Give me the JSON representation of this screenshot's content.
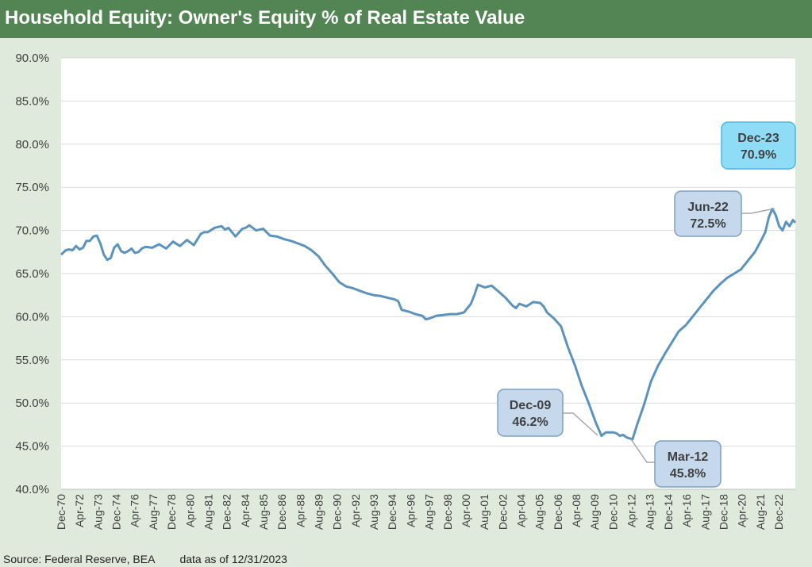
{
  "header": {
    "title": "Household Equity: Owner's Equity % of Real Estate Value"
  },
  "footer": {
    "source": "Source: Federal Reserve, BEA",
    "as_of": "data as of 12/31/2023"
  },
  "colors": {
    "title_bar": "#538453",
    "background": "#dfe9dc",
    "line": "#5b93bf",
    "callout_fill": "#c6d8ec",
    "callout_border": "#7b9fbf",
    "highlight_fill": "#8fdcf7",
    "highlight_border": "#4fb6e0"
  },
  "chart_data": {
    "type": "line",
    "title": "Household Equity: Owner's Equity % of Real Estate Value",
    "xlabel": "",
    "ylabel": "",
    "ylim": [
      40,
      90
    ],
    "yticks": [
      "90.0%",
      "85.0%",
      "80.0%",
      "75.0%",
      "70.0%",
      "65.0%",
      "60.0%",
      "55.0%",
      "50.0%",
      "45.0%",
      "40.0%"
    ],
    "xticks": [
      "Dec-70",
      "Apr-72",
      "Aug-73",
      "Dec-74",
      "Apr-76",
      "Aug-77",
      "Dec-78",
      "Apr-80",
      "Aug-81",
      "Dec-82",
      "Apr-84",
      "Aug-85",
      "Dec-86",
      "Apr-88",
      "Aug-89",
      "Dec-90",
      "Apr-92",
      "Aug-93",
      "Dec-94",
      "Apr-96",
      "Aug-97",
      "Dec-98",
      "Apr-00",
      "Aug-01",
      "Dec-02",
      "Apr-04",
      "Aug-05",
      "Dec-06",
      "Apr-08",
      "Aug-09",
      "Dec-10",
      "Apr-12",
      "Aug-13",
      "Dec-14",
      "Apr-16",
      "Aug-17",
      "Dec-18",
      "Apr-20",
      "Aug-21",
      "Dec-22"
    ],
    "grid": true,
    "series": [
      {
        "x": [
          1970.92,
          1971.25,
          1971.5,
          1971.75,
          1972.0,
          1972.25,
          1972.5,
          1972.75,
          1973.0,
          1973.25,
          1973.5,
          1973.75,
          1974.0,
          1974.25,
          1974.5,
          1974.75,
          1975.0,
          1975.25,
          1975.5,
          1975.75,
          1976.0,
          1976.25,
          1976.5,
          1976.75,
          1977.0,
          1977.5,
          1978.0,
          1978.5,
          1979.0,
          1979.5,
          1980.0,
          1980.5,
          1981.0,
          1981.25,
          1981.5,
          1982.0,
          1982.5,
          1982.75,
          1983.0,
          1983.5,
          1984.0,
          1984.25,
          1984.5,
          1985.0,
          1985.5,
          1985.75,
          1986.0,
          1986.5,
          1987.0,
          1987.5,
          1988.0,
          1988.5,
          1989.0,
          1989.5,
          1990.0,
          1990.5,
          1991.0,
          1991.5,
          1992.0,
          1992.5,
          1993.0,
          1993.5,
          1994.0,
          1994.5,
          1995.0,
          1995.25,
          1995.5,
          1996.0,
          1996.5,
          1997.0,
          1997.25,
          1997.5,
          1998.0,
          1998.5,
          1999.0,
          1999.5,
          2000.0,
          2000.5,
          2000.75,
          2001.0,
          2001.5,
          2002.0,
          2002.5,
          2003.0,
          2003.5,
          2003.75,
          2004.0,
          2004.5,
          2005.0,
          2005.5,
          2005.75,
          2006.0,
          2006.5,
          2007.0,
          2007.5,
          2008.0,
          2008.5,
          2009.0,
          2009.5,
          2009.92,
          2010.25,
          2010.75,
          2011.0,
          2011.25,
          2011.5,
          2011.75,
          2012.17,
          2012.5,
          2013.0,
          2013.5,
          2014.0,
          2014.5,
          2015.0,
          2015.5,
          2016.0,
          2016.5,
          2017.0,
          2017.5,
          2018.0,
          2018.5,
          2019.0,
          2019.5,
          2020.0,
          2020.5,
          2021.0,
          2021.5,
          2021.75,
          2022.0,
          2022.25,
          2022.5,
          2022.75,
          2023.0,
          2023.25,
          2023.5,
          2023.75,
          2023.92
        ],
        "values": [
          67.2,
          67.7,
          67.8,
          67.7,
          68.2,
          67.8,
          68.0,
          68.8,
          68.8,
          69.3,
          69.4,
          68.5,
          67.2,
          66.6,
          66.8,
          68.0,
          68.4,
          67.6,
          67.4,
          67.6,
          67.9,
          67.4,
          67.5,
          67.9,
          68.1,
          68.0,
          68.4,
          67.9,
          68.7,
          68.2,
          68.9,
          68.3,
          69.6,
          69.8,
          69.8,
          70.3,
          70.5,
          70.1,
          70.3,
          69.3,
          70.2,
          70.3,
          70.6,
          70.0,
          70.2,
          69.8,
          69.4,
          69.3,
          69.0,
          68.8,
          68.5,
          68.2,
          67.7,
          67.0,
          65.9,
          65.0,
          64.0,
          63.5,
          63.3,
          63.0,
          62.7,
          62.5,
          62.4,
          62.2,
          62.0,
          61.8,
          60.8,
          60.6,
          60.3,
          60.1,
          59.7,
          59.8,
          60.1,
          60.2,
          60.3,
          60.3,
          60.5,
          61.5,
          62.5,
          63.7,
          63.4,
          63.6,
          62.9,
          62.2,
          61.3,
          61.0,
          61.5,
          61.2,
          61.7,
          61.6,
          61.2,
          60.5,
          59.8,
          58.9,
          56.5,
          54.4,
          52.0,
          50.0,
          47.8,
          46.2,
          46.6,
          46.6,
          46.5,
          46.2,
          46.3,
          46.0,
          45.8,
          47.5,
          49.8,
          52.5,
          54.3,
          55.7,
          57.0,
          58.3,
          59.0,
          60.0,
          61.0,
          62.0,
          63.0,
          63.8,
          64.5,
          65.0,
          65.5,
          66.5,
          67.5,
          69.0,
          69.8,
          71.5,
          72.5,
          71.8,
          70.5,
          70.0,
          71.0,
          70.5,
          71.2,
          70.9
        ]
      }
    ],
    "annotations": [
      {
        "label": "Dec-09",
        "value": "46.2%"
      },
      {
        "label": "Mar-12",
        "value": "45.8%"
      },
      {
        "label": "Jun-22",
        "value": "72.5%"
      },
      {
        "label": "Dec-23",
        "value": "70.9%"
      }
    ]
  }
}
